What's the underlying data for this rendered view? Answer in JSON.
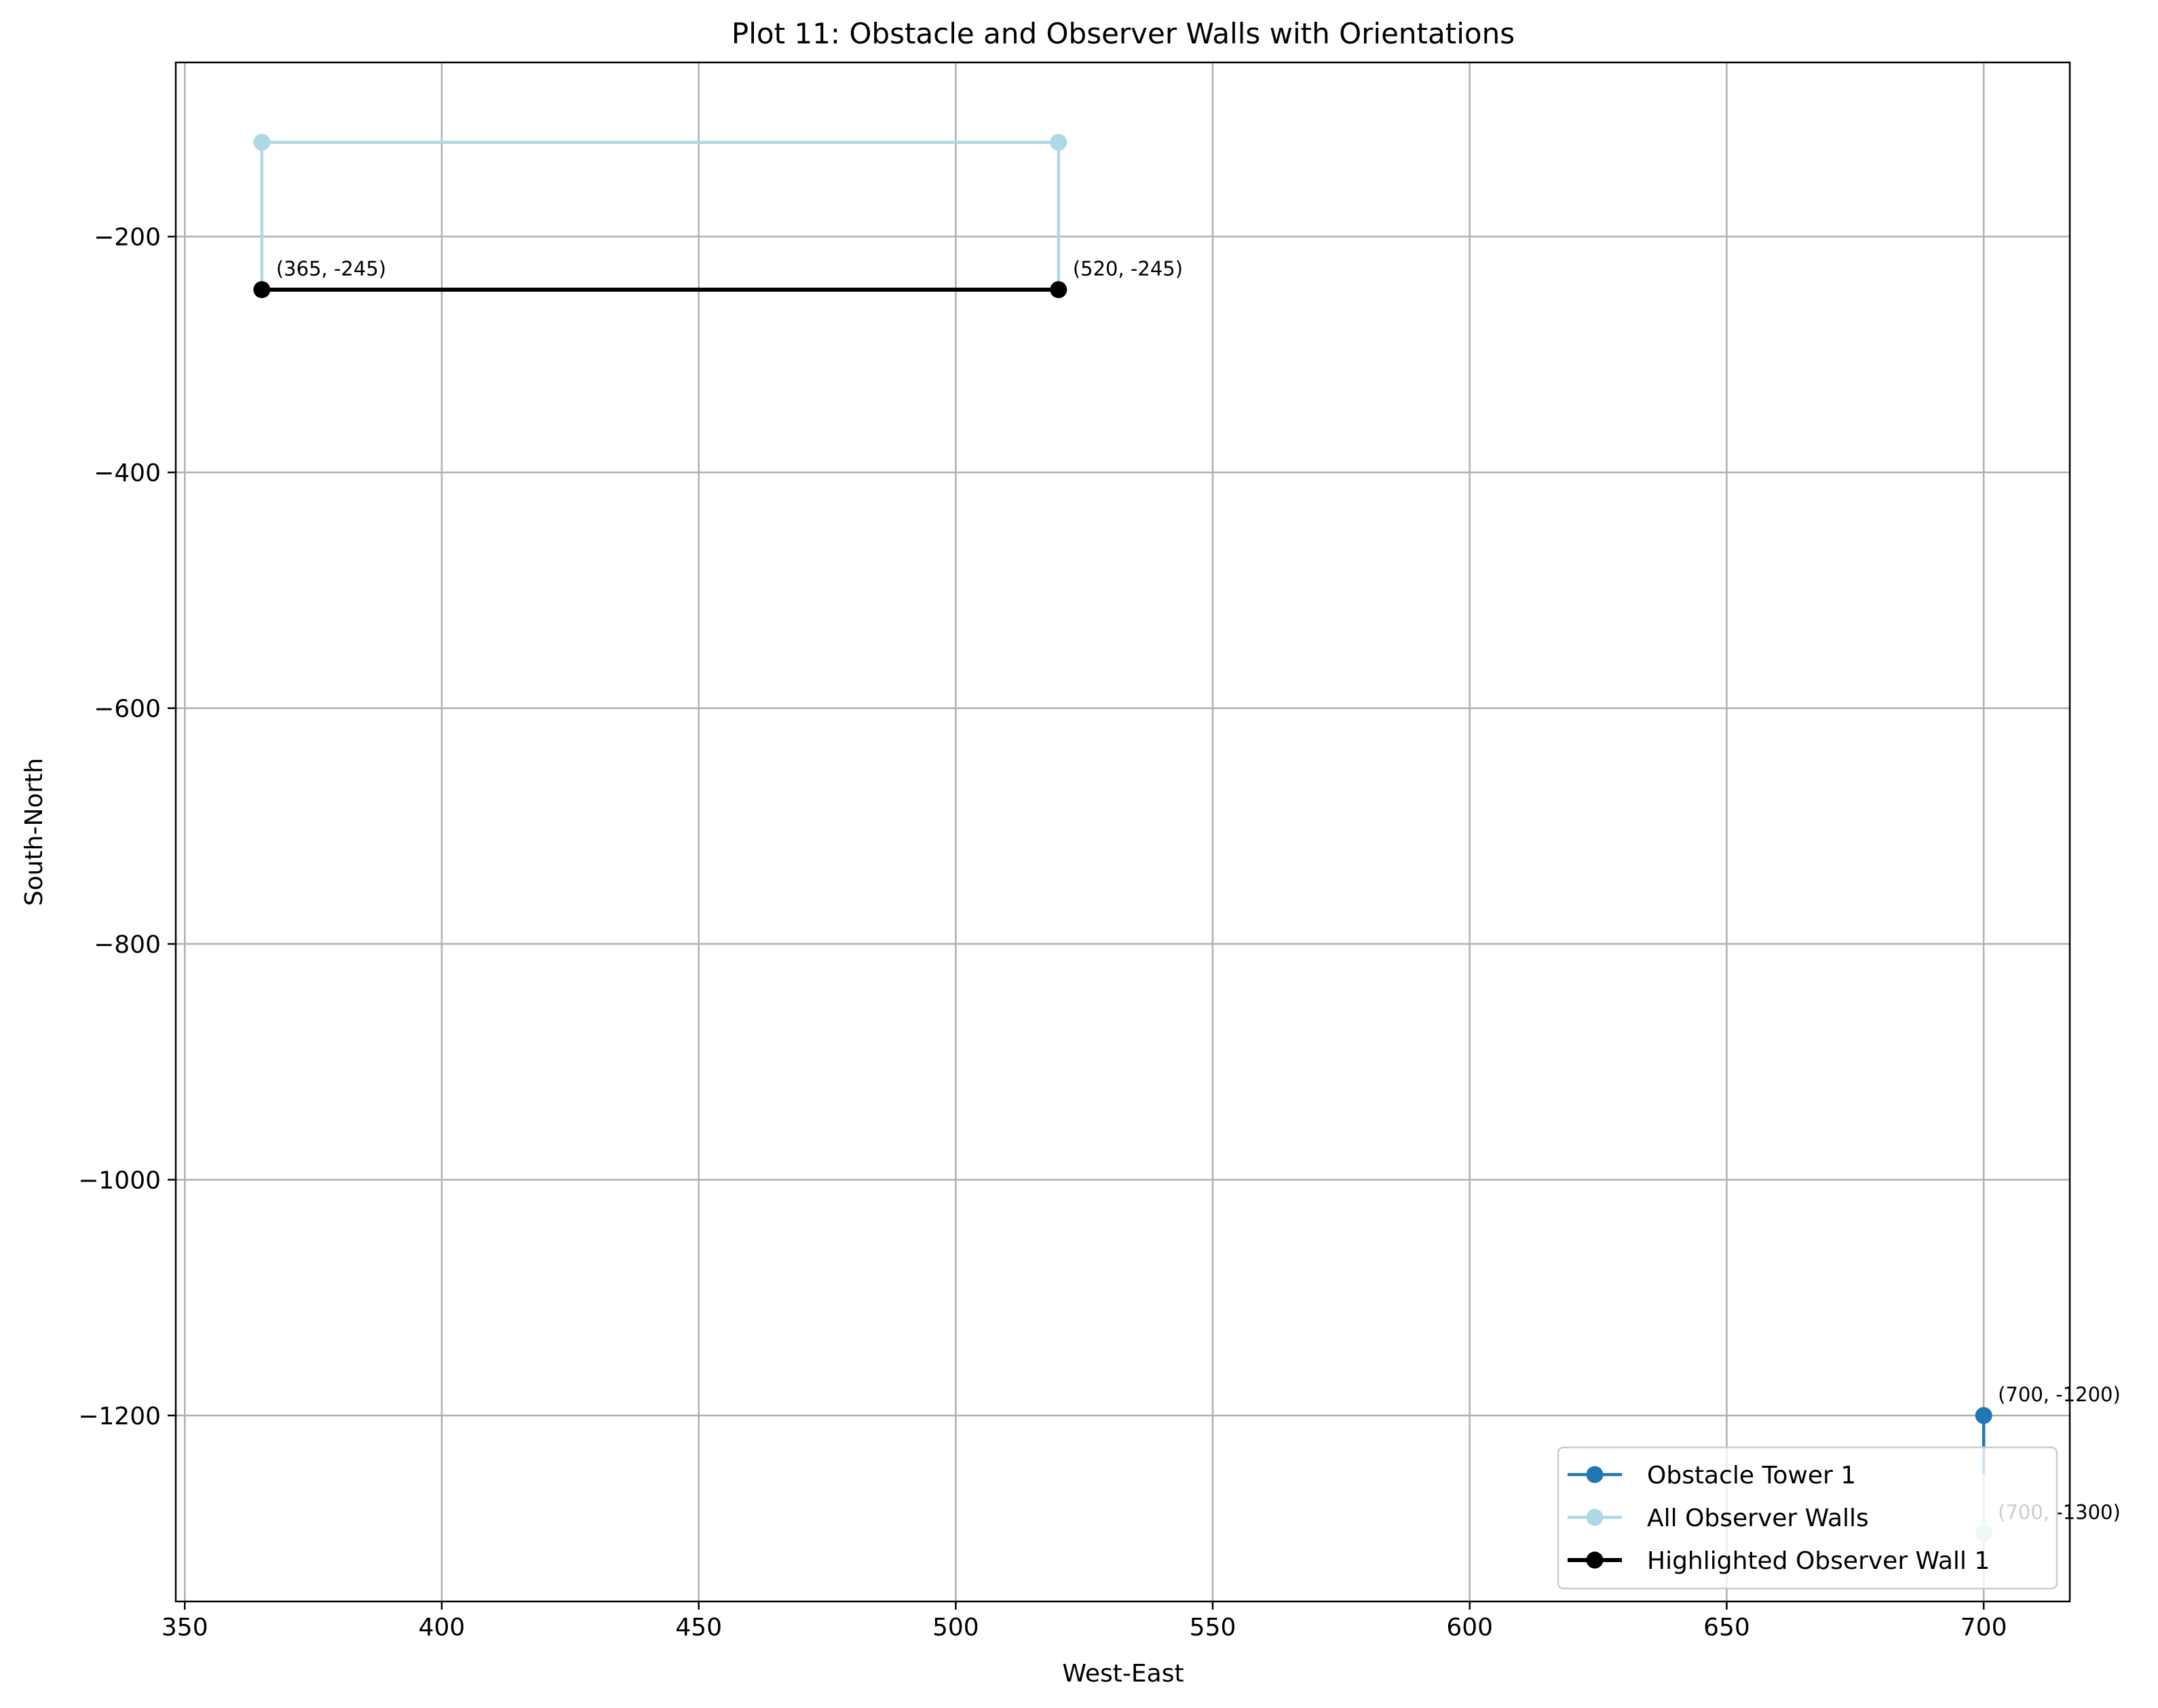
{
  "chart_data": {
    "type": "line",
    "title": "Plot 11: Obstacle and Observer Walls with Orientations",
    "xlabel": "West-East",
    "ylabel": "South-North",
    "xlim": [
      348.25,
      716.75
    ],
    "ylim": [
      -1357.75,
      -52.25
    ],
    "xticks": [
      350,
      400,
      450,
      500,
      550,
      600,
      650,
      700
    ],
    "yticks": [
      -200,
      -400,
      -600,
      -800,
      -1000,
      -1200
    ],
    "xtick_labels": [
      "350",
      "400",
      "450",
      "500",
      "550",
      "600",
      "650",
      "700"
    ],
    "ytick_labels": [
      "−200",
      "−400",
      "−600",
      "−800",
      "−1000",
      "−1200"
    ],
    "grid": true,
    "legend_position": "lower right",
    "series": [
      {
        "name": "All Observer Walls",
        "color": "#add8e6",
        "segments": [
          [
            [
              365,
              -245
            ],
            [
              365,
              -120
            ]
          ],
          [
            [
              365,
              -120
            ],
            [
              520,
              -120
            ]
          ],
          [
            [
              520,
              -120
            ],
            [
              520,
              -245
            ]
          ],
          [
            [
              700,
              -1200
            ],
            [
              700,
              -1300
            ]
          ]
        ],
        "markers": [
          [
            365,
            -120
          ],
          [
            520,
            -120
          ],
          [
            700,
            -1300
          ]
        ]
      },
      {
        "name": "Obstacle Tower 1",
        "color": "#1f77b4",
        "segments": [
          [
            [
              700,
              -1200
            ],
            [
              700,
              -1250
            ]
          ]
        ],
        "markers": [
          [
            700,
            -1200
          ]
        ]
      },
      {
        "name": "Highlighted Observer Wall 1",
        "color": "#000000",
        "segments": [
          [
            [
              365,
              -245
            ],
            [
              520,
              -245
            ]
          ]
        ],
        "markers": [
          [
            365,
            -245
          ],
          [
            520,
            -245
          ]
        ]
      }
    ],
    "annotations": [
      {
        "text": "(365, -245)",
        "x": 365,
        "y": -245,
        "color": "#000000"
      },
      {
        "text": "(520, -245)",
        "x": 520,
        "y": -245,
        "color": "#000000"
      },
      {
        "text": "(700, -1200)",
        "x": 700,
        "y": -1200,
        "color": "#000000"
      },
      {
        "text": "(700, -1300)",
        "x": 700,
        "y": -1300,
        "color": "#000000"
      }
    ],
    "legend": [
      {
        "label": "Obstacle Tower 1",
        "color": "#1f77b4"
      },
      {
        "label": "All Observer Walls",
        "color": "#add8e6"
      },
      {
        "label": "Highlighted Observer Wall 1",
        "color": "#000000"
      }
    ]
  }
}
